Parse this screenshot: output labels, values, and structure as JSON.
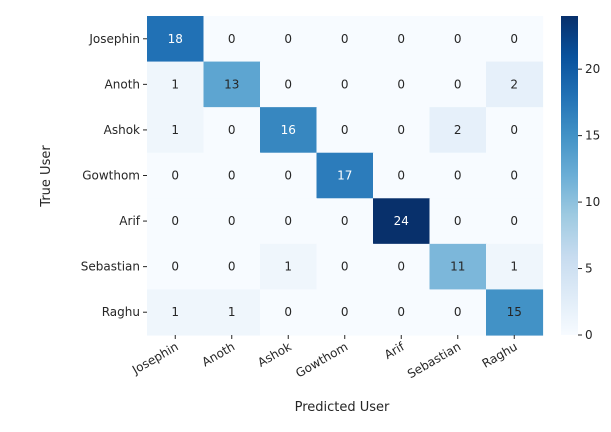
{
  "chart_data": {
    "type": "heatmap",
    "title": "",
    "xlabel": "Predicted User",
    "ylabel": "True User",
    "x_categories": [
      "Josephin",
      "Anoth",
      "Ashok",
      "Gowthom",
      "Arif",
      "Sebastian",
      "Raghu"
    ],
    "y_categories": [
      "Josephin",
      "Anoth",
      "Ashok",
      "Gowthom",
      "Arif",
      "Sebastian",
      "Raghu"
    ],
    "values": [
      [
        18,
        0,
        0,
        0,
        0,
        0,
        0
      ],
      [
        1,
        13,
        0,
        0,
        0,
        0,
        2
      ],
      [
        1,
        0,
        16,
        0,
        0,
        2,
        0
      ],
      [
        0,
        0,
        0,
        17,
        0,
        0,
        0
      ],
      [
        0,
        0,
        0,
        0,
        24,
        0,
        0
      ],
      [
        0,
        0,
        1,
        0,
        0,
        11,
        1
      ],
      [
        1,
        1,
        0,
        0,
        0,
        0,
        15
      ]
    ],
    "colorbar": {
      "range": [
        0,
        24
      ],
      "ticks": [
        0,
        5,
        10,
        15,
        20
      ],
      "colormap": "Blues"
    },
    "colors": {
      "low": "#f7fbff",
      "high": "#08306b"
    }
  }
}
